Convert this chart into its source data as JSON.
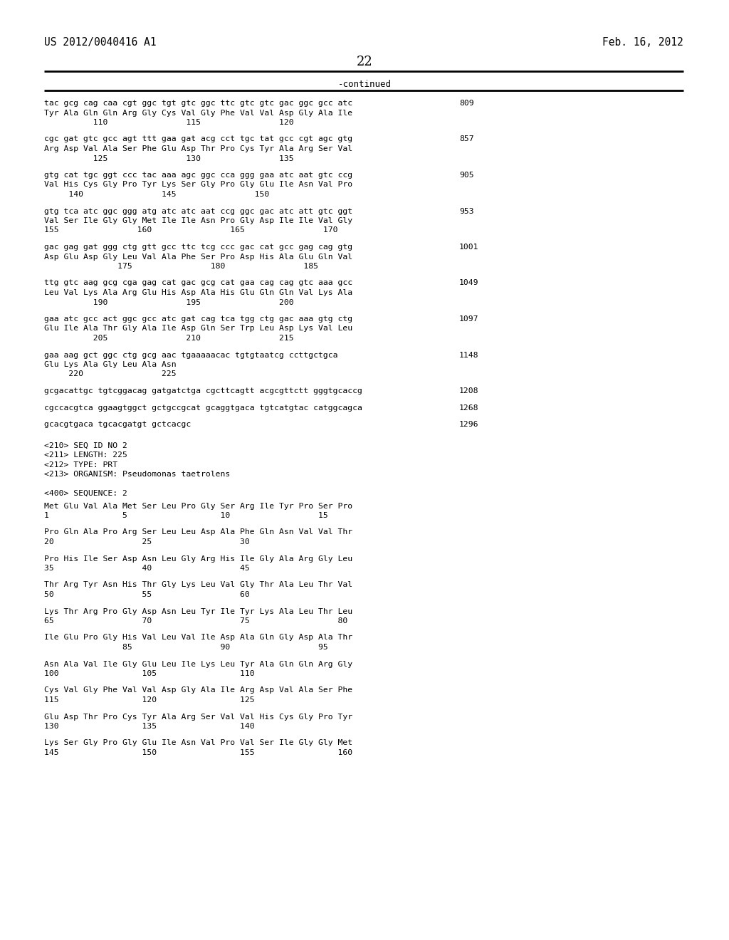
{
  "header_left": "US 2012/0040416 A1",
  "header_right": "Feb. 16, 2012",
  "page_number": "22",
  "continued_label": "-continued",
  "background_color": "#ffffff",
  "text_color": "#000000",
  "content_blocks": [
    {
      "dna": "tac gcg cag caa cgt ggc tgt gtc ggc ttc gtc gtc gac ggc gcc atc",
      "aa": "Tyr Ala Gln Gln Arg Gly Cys Val Gly Phe Val Val Asp Gly Ala Ile",
      "nums": "          110                115                120",
      "num_right": "809"
    },
    {
      "dna": "cgc gat gtc gcc agt ttt gaa gat acg cct tgc tat gcc cgt agc gtg",
      "aa": "Arg Asp Val Ala Ser Phe Glu Asp Thr Pro Cys Tyr Ala Arg Ser Val",
      "nums": "          125                130                135",
      "num_right": "857"
    },
    {
      "dna": "gtg cat tgc ggt ccc tac aaa agc ggc cca ggg gaa atc aat gtc ccg",
      "aa": "Val His Cys Gly Pro Tyr Lys Ser Gly Pro Gly Glu Ile Asn Val Pro",
      "nums": "     140                145                150",
      "num_right": "905"
    },
    {
      "dna": "gtg tca atc ggc ggg atg atc atc aat ccg ggc gac atc att gtc ggt",
      "aa": "Val Ser Ile Gly Gly Met Ile Ile Asn Pro Gly Asp Ile Ile Val Gly",
      "nums": "155                160                165                170",
      "num_right": "953"
    },
    {
      "dna": "gac gag gat ggg ctg gtt gcc ttc tcg ccc gac cat gcc gag cag gtg",
      "aa": "Asp Glu Asp Gly Leu Val Ala Phe Ser Pro Asp His Ala Glu Gln Val",
      "nums": "               175                180                185",
      "num_right": "1001"
    },
    {
      "dna": "ttg gtc aag gcg cga gag cat gac gcg cat gaa cag cag gtc aaa gcc",
      "aa": "Leu Val Lys Ala Arg Glu His Asp Ala His Glu Gln Gln Val Lys Ala",
      "nums": "          190                195                200",
      "num_right": "1049"
    },
    {
      "dna": "gaa atc gcc act ggc gcc atc gat cag tca tgg ctg gac aaa gtg ctg",
      "aa": "Glu Ile Ala Thr Gly Ala Ile Asp Gln Ser Trp Leu Asp Lys Val Leu",
      "nums": "          205                210                215",
      "num_right": "1097"
    },
    {
      "dna": "gaa aag gct ggc ctg gcg aac tgaaaaacac tgtgtaatcg ccttgctgca",
      "aa": "Glu Lys Ala Gly Leu Ala Asn",
      "nums": "     220                225",
      "num_right": "1148"
    },
    {
      "dna": "gcgacattgc tgtcggacag gatgatctga cgcttcagtt acgcgttctt gggtgcaccg",
      "aa": "",
      "nums": "",
      "num_right": "1208"
    },
    {
      "dna": "cgccacgtca ggaagtggct gctgccgcat gcaggtgaca tgtcatgtac catggcagca",
      "aa": "",
      "nums": "",
      "num_right": "1268"
    },
    {
      "dna": "gcacgtgaca tgcacgatgt gctcacgc",
      "aa": "",
      "nums": "",
      "num_right": "1296"
    }
  ],
  "seq_block": [
    "<210> SEQ ID NO 2",
    "<211> LENGTH: 225",
    "<212> TYPE: PRT",
    "<213> ORGANISM: Pseudomonas taetrolens",
    "",
    "<400> SEQUENCE: 2"
  ],
  "protein_blocks": [
    {
      "line1": "Met Glu Val Ala Met Ser Leu Pro Gly Ser Arg Ile Tyr Pro Ser Pro",
      "line2": "1               5                   10                  15"
    },
    {
      "line1": "Pro Gln Ala Pro Arg Ser Leu Leu Asp Ala Phe Gln Asn Val Val Thr",
      "line2": "20                  25                  30"
    },
    {
      "line1": "Pro His Ile Ser Asp Asn Leu Gly Arg His Ile Gly Ala Arg Gly Leu",
      "line2": "35                  40                  45"
    },
    {
      "line1": "Thr Arg Tyr Asn His Thr Gly Lys Leu Val Gly Thr Ala Leu Thr Val",
      "line2": "50                  55                  60"
    },
    {
      "line1": "Lys Thr Arg Pro Gly Asp Asn Leu Tyr Ile Tyr Lys Ala Leu Thr Leu",
      "line2": "65                  70                  75                  80"
    },
    {
      "line1": "Ile Glu Pro Gly His Val Leu Val Ile Asp Ala Gln Gly Asp Ala Thr",
      "line2": "                85                  90                  95"
    },
    {
      "line1": "Asn Ala Val Ile Gly Glu Leu Ile Lys Leu Tyr Ala Gln Gln Arg Gly",
      "line2": "100                 105                 110"
    },
    {
      "line1": "Cys Val Gly Phe Val Val Asp Gly Ala Ile Arg Asp Val Ala Ser Phe",
      "line2": "115                 120                 125"
    },
    {
      "line1": "Glu Asp Thr Pro Cys Tyr Ala Arg Ser Val Val His Cys Gly Pro Tyr",
      "line2": "130                 135                 140"
    },
    {
      "line1": "Lys Ser Gly Pro Gly Glu Ile Asn Val Pro Val Ser Ile Gly Gly Met",
      "line2": "145                 150                 155                 160"
    }
  ]
}
